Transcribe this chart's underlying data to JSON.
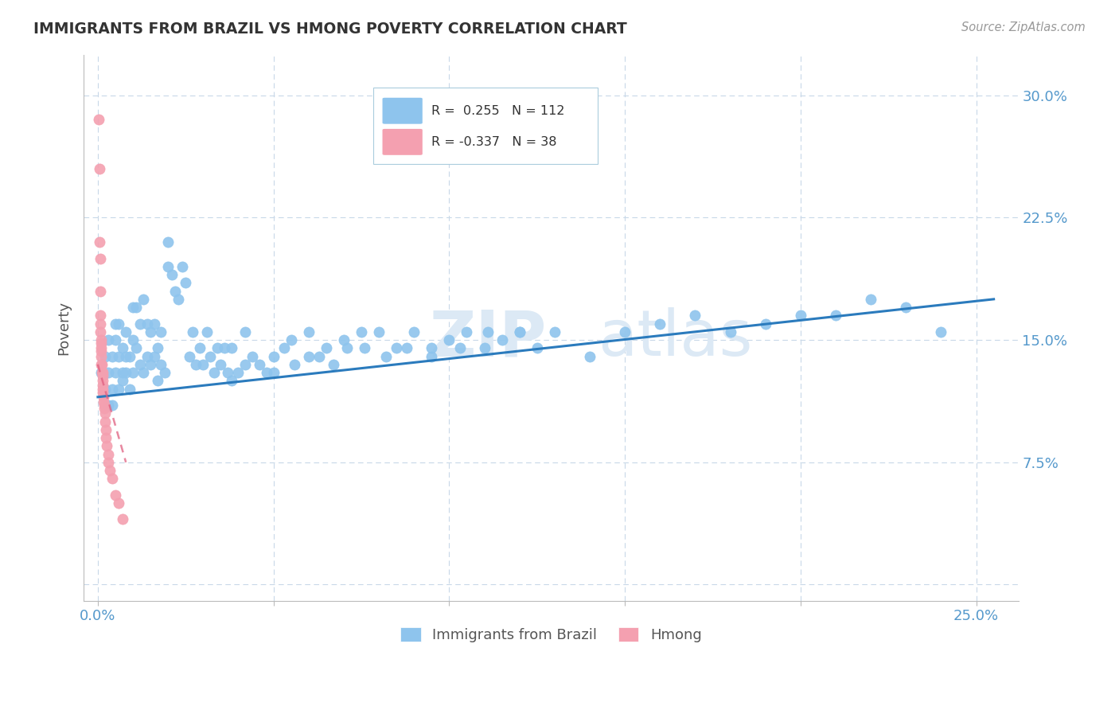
{
  "title": "IMMIGRANTS FROM BRAZIL VS HMONG POVERTY CORRELATION CHART",
  "source": "Source: ZipAtlas.com",
  "ylabel_label": "Poverty",
  "x_tick_positions": [
    0.0,
    0.05,
    0.1,
    0.15,
    0.2,
    0.25
  ],
  "x_tick_labels": [
    "0.0%",
    "",
    "",
    "",
    "",
    "25.0%"
  ],
  "y_tick_positions": [
    0.0,
    0.075,
    0.15,
    0.225,
    0.3
  ],
  "y_tick_labels": [
    "",
    "7.5%",
    "15.0%",
    "22.5%",
    "30.0%"
  ],
  "xlim": [
    -0.004,
    0.262
  ],
  "ylim": [
    -0.01,
    0.325
  ],
  "brazil_color": "#8EC4ED",
  "hmong_color": "#F4A0B0",
  "brazil_line_color": "#2B7BBD",
  "hmong_line_color": "#E06080",
  "brazil_R": 0.255,
  "brazil_N": 112,
  "hmong_R": -0.337,
  "hmong_N": 38,
  "grid_color": "#C8D8E8",
  "title_color": "#333333",
  "axis_color": "#5599CC",
  "brazil_trend_x0": 0.0,
  "brazil_trend_x1": 0.255,
  "brazil_trend_y0": 0.115,
  "brazil_trend_y1": 0.175,
  "hmong_trend_x0": 0.0,
  "hmong_trend_x1": 0.008,
  "hmong_trend_y0": 0.135,
  "hmong_trend_y1": 0.075,
  "marker_size": 90,
  "brazil_x": [
    0.001,
    0.002,
    0.002,
    0.003,
    0.003,
    0.003,
    0.004,
    0.004,
    0.004,
    0.005,
    0.005,
    0.005,
    0.006,
    0.006,
    0.006,
    0.007,
    0.007,
    0.007,
    0.008,
    0.008,
    0.008,
    0.009,
    0.009,
    0.01,
    0.01,
    0.01,
    0.011,
    0.011,
    0.012,
    0.012,
    0.013,
    0.013,
    0.014,
    0.014,
    0.015,
    0.015,
    0.016,
    0.016,
    0.017,
    0.017,
    0.018,
    0.018,
    0.019,
    0.02,
    0.02,
    0.021,
    0.022,
    0.023,
    0.024,
    0.025,
    0.026,
    0.027,
    0.028,
    0.029,
    0.03,
    0.031,
    0.032,
    0.033,
    0.034,
    0.035,
    0.036,
    0.037,
    0.038,
    0.04,
    0.042,
    0.044,
    0.046,
    0.048,
    0.05,
    0.053,
    0.056,
    0.06,
    0.063,
    0.067,
    0.071,
    0.076,
    0.082,
    0.088,
    0.095,
    0.103,
    0.111,
    0.12,
    0.13,
    0.14,
    0.15,
    0.16,
    0.17,
    0.18,
    0.19,
    0.2,
    0.21,
    0.22,
    0.23,
    0.24,
    0.038,
    0.042,
    0.05,
    0.055,
    0.06,
    0.065,
    0.07,
    0.075,
    0.08,
    0.085,
    0.09,
    0.095,
    0.1,
    0.105,
    0.11,
    0.115,
    0.12,
    0.125
  ],
  "brazil_y": [
    0.13,
    0.12,
    0.14,
    0.11,
    0.15,
    0.13,
    0.12,
    0.14,
    0.11,
    0.15,
    0.13,
    0.16,
    0.12,
    0.14,
    0.16,
    0.13,
    0.145,
    0.125,
    0.14,
    0.13,
    0.155,
    0.14,
    0.12,
    0.17,
    0.13,
    0.15,
    0.145,
    0.17,
    0.135,
    0.16,
    0.13,
    0.175,
    0.14,
    0.16,
    0.135,
    0.155,
    0.14,
    0.16,
    0.145,
    0.125,
    0.155,
    0.135,
    0.13,
    0.195,
    0.21,
    0.19,
    0.18,
    0.175,
    0.195,
    0.185,
    0.14,
    0.155,
    0.135,
    0.145,
    0.135,
    0.155,
    0.14,
    0.13,
    0.145,
    0.135,
    0.145,
    0.13,
    0.125,
    0.13,
    0.135,
    0.14,
    0.135,
    0.13,
    0.13,
    0.145,
    0.135,
    0.14,
    0.14,
    0.135,
    0.145,
    0.145,
    0.14,
    0.145,
    0.14,
    0.145,
    0.155,
    0.155,
    0.155,
    0.14,
    0.155,
    0.16,
    0.165,
    0.155,
    0.16,
    0.165,
    0.165,
    0.175,
    0.17,
    0.155,
    0.145,
    0.155,
    0.14,
    0.15,
    0.155,
    0.145,
    0.15,
    0.155,
    0.155,
    0.145,
    0.155,
    0.145,
    0.15,
    0.155,
    0.145,
    0.15,
    0.155,
    0.145
  ],
  "hmong_x": [
    0.0003,
    0.0004,
    0.0005,
    0.0006,
    0.0007,
    0.0007,
    0.0008,
    0.0008,
    0.0009,
    0.001,
    0.001,
    0.001,
    0.001,
    0.001,
    0.0012,
    0.0012,
    0.0013,
    0.0013,
    0.0014,
    0.0014,
    0.0015,
    0.0015,
    0.0016,
    0.0017,
    0.0018,
    0.0019,
    0.002,
    0.002,
    0.0022,
    0.0023,
    0.0025,
    0.003,
    0.003,
    0.0035,
    0.004,
    0.005,
    0.006,
    0.007
  ],
  "hmong_y": [
    0.285,
    0.255,
    0.21,
    0.2,
    0.18,
    0.165,
    0.16,
    0.155,
    0.15,
    0.148,
    0.145,
    0.143,
    0.14,
    0.135,
    0.135,
    0.13,
    0.13,
    0.128,
    0.125,
    0.122,
    0.12,
    0.118,
    0.115,
    0.112,
    0.11,
    0.108,
    0.105,
    0.1,
    0.095,
    0.09,
    0.085,
    0.08,
    0.075,
    0.07,
    0.065,
    0.055,
    0.05,
    0.04
  ]
}
